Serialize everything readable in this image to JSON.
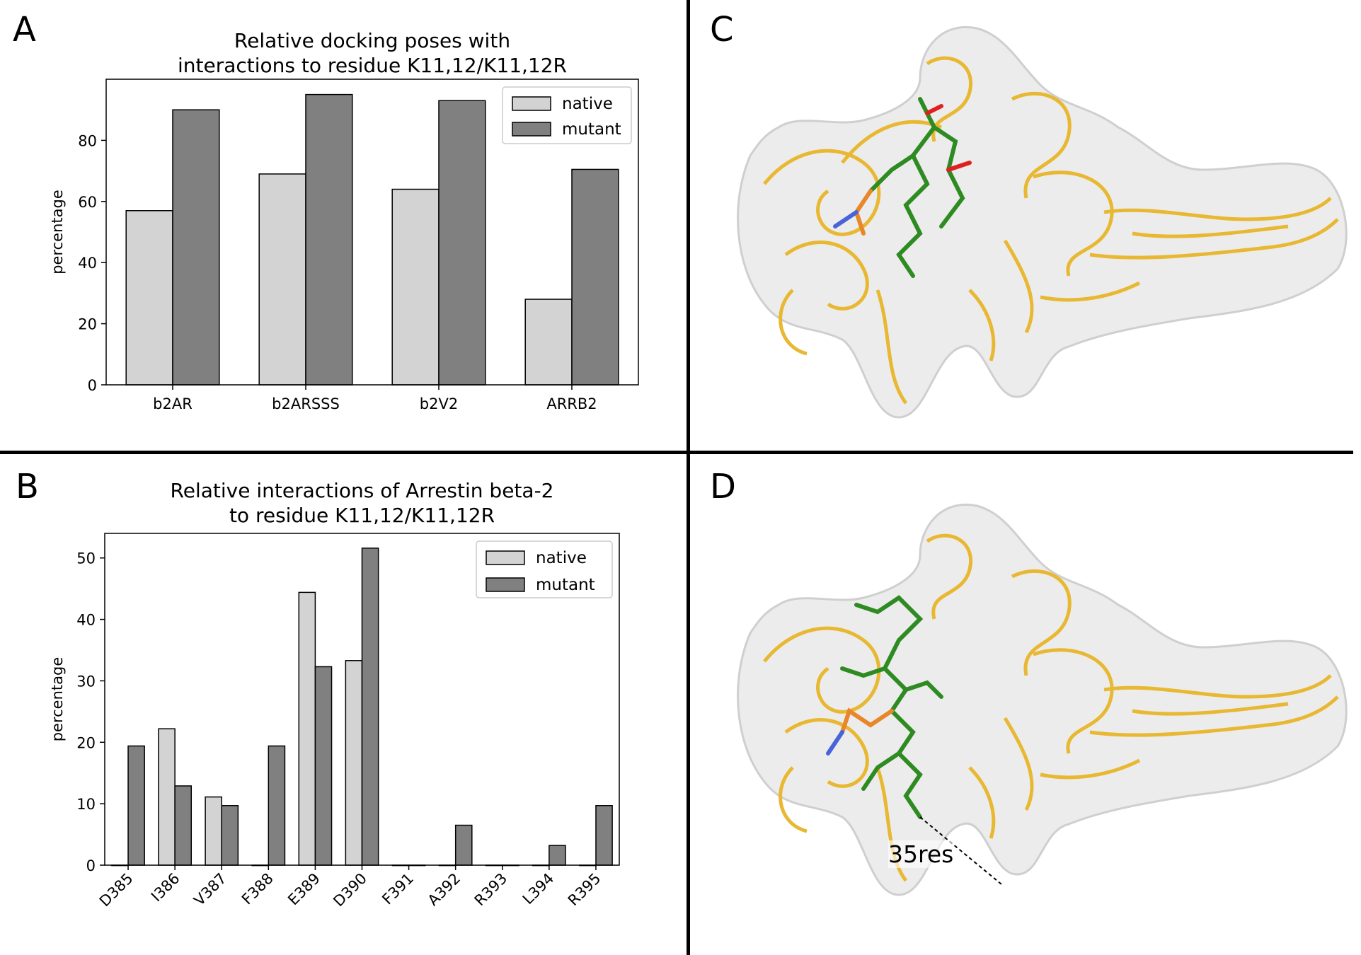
{
  "panels": {
    "a": {
      "letter": "A"
    },
    "b": {
      "letter": "B"
    },
    "c": {
      "letter": "C"
    },
    "d": {
      "letter": "D",
      "distance_label": "35res"
    }
  },
  "colors": {
    "native": "#d3d3d3",
    "mutant": "#808080",
    "ribbon": "#e8b832",
    "surface": "#e9e9e9",
    "ligand": "#2e8b22",
    "phospho": "#e8862a"
  },
  "chart_data": [
    {
      "type": "bar",
      "title": [
        "Relative docking poses with",
        "interactions to residue K11,12/K11,12R"
      ],
      "xlabel": "",
      "ylabel": "percentage",
      "categories": [
        "b2AR",
        "b2ARSSS",
        "b2V2",
        "ARRB2"
      ],
      "series": [
        {
          "name": "native",
          "values": [
            57,
            69,
            64,
            28
          ]
        },
        {
          "name": "mutant",
          "values": [
            90,
            95,
            93,
            70.5
          ]
        }
      ],
      "ylim": [
        0,
        100
      ],
      "yticks": [
        0,
        20,
        40,
        60,
        80
      ],
      "legend": "top-right",
      "grid": false
    },
    {
      "type": "bar",
      "title": [
        "Relative interactions of Arrestin beta-2",
        "to residue K11,12/K11,12R"
      ],
      "xlabel": "",
      "ylabel": "percentage",
      "categories": [
        "D385",
        "I386",
        "V387",
        "F388",
        "E389",
        "D390",
        "F391",
        "A392",
        "R393",
        "L394",
        "R395"
      ],
      "series": [
        {
          "name": "native",
          "values": [
            0,
            22.2,
            11.1,
            0,
            44.4,
            33.3,
            0,
            0,
            0,
            0,
            0
          ]
        },
        {
          "name": "mutant",
          "values": [
            19.4,
            12.9,
            9.7,
            19.4,
            32.3,
            51.6,
            0,
            6.5,
            0,
            3.2,
            9.7
          ]
        }
      ],
      "ylim": [
        0,
        54
      ],
      "yticks": [
        0,
        10,
        20,
        30,
        40,
        50
      ],
      "legend": "top-right",
      "grid": false
    }
  ]
}
